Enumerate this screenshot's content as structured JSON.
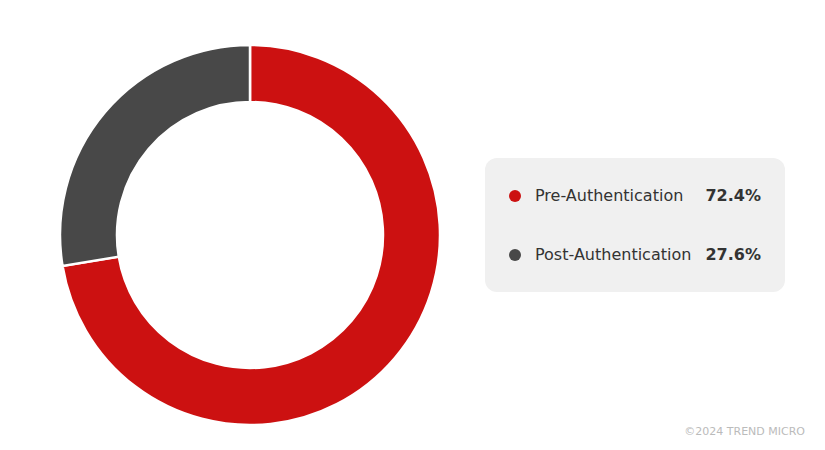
{
  "chart_data": {
    "type": "donut",
    "categories": [
      "Pre-Authentication",
      "Post-Authentication"
    ],
    "values": [
      72.4,
      27.6
    ],
    "value_labels": [
      "72.4%",
      "27.6%"
    ],
    "colors": [
      "#cc1111",
      "#484848"
    ],
    "legend": "right",
    "annotations": [
      "©2024 TREND MICRO"
    ]
  }
}
